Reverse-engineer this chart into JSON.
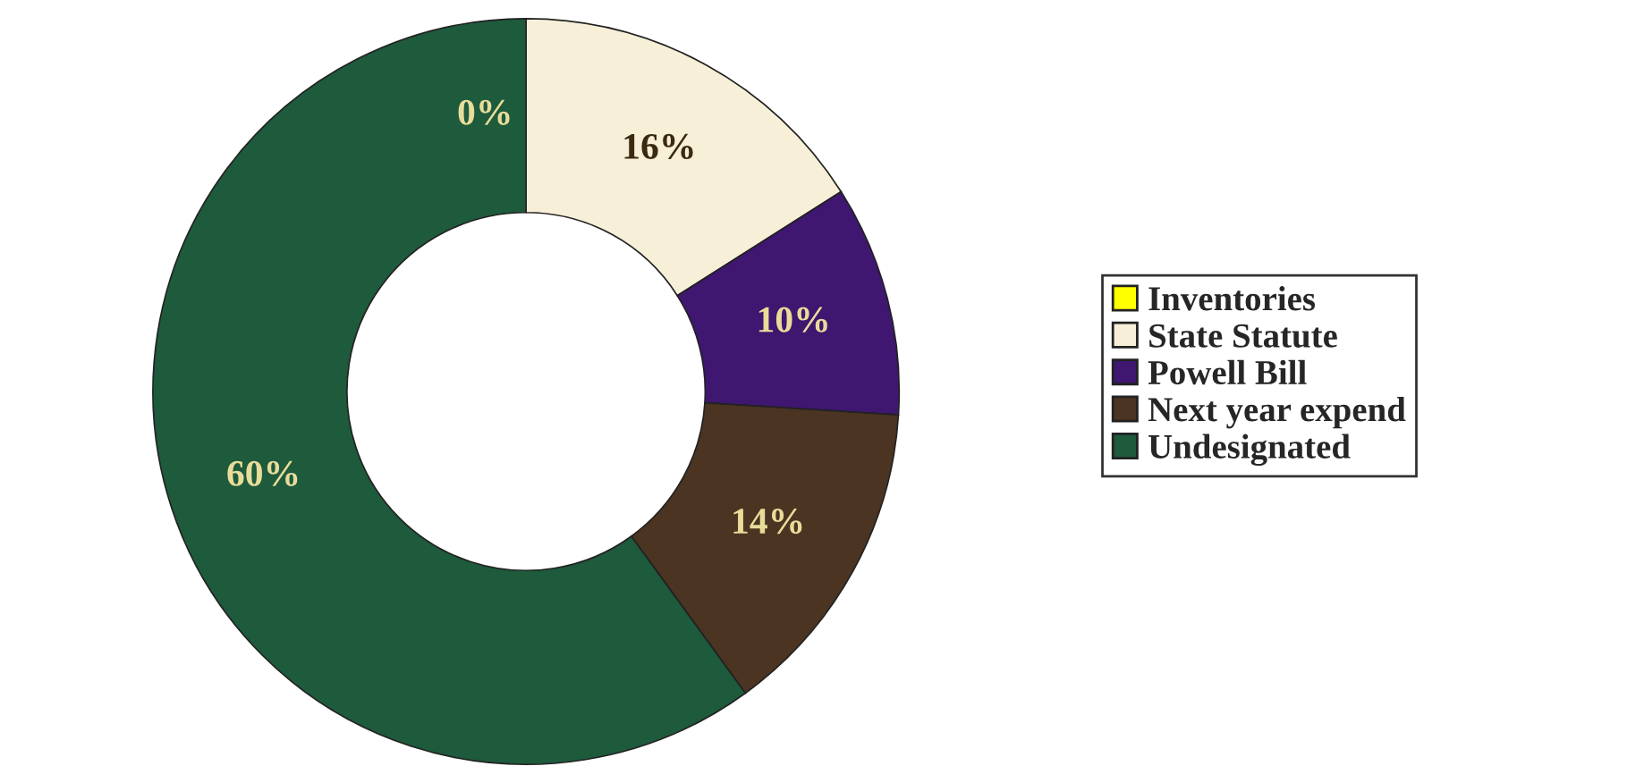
{
  "chart_data": {
    "type": "donut",
    "categories": [
      "Inventories",
      "State Statute",
      "Powell Bill",
      "Next year expend",
      "Undesignated"
    ],
    "values": [
      0,
      16,
      10,
      14,
      60
    ],
    "colors": [
      "#ffff00",
      "#f7efd8",
      "#3f1670",
      "#4b3422",
      "#1e5a3c"
    ],
    "value_labels": [
      "0%",
      "16%",
      "10%",
      "14%",
      "60%"
    ],
    "legend": "right"
  }
}
